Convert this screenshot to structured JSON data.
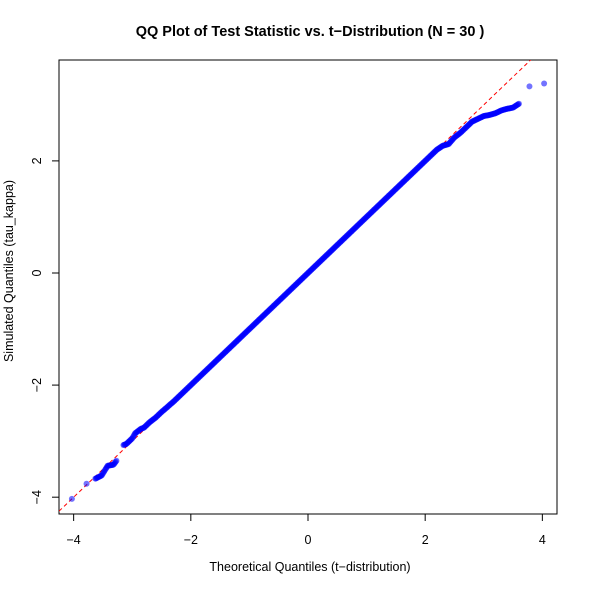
{
  "chart_data": {
    "type": "scatter",
    "title": "QQ Plot of Test Statistic vs. t−Distribution (N = 30 )",
    "xlabel": "Theoretical Quantiles (t−distribution)",
    "ylabel": "Simulated Quantiles (tau_kappa)",
    "xlim": [
      -4.25,
      4.25
    ],
    "ylim": [
      -4.3,
      3.8
    ],
    "x_ticks": [
      -4,
      -2,
      0,
      2,
      4
    ],
    "x_tick_labels": [
      "−4",
      "−2",
      "0",
      "2",
      "4"
    ],
    "y_ticks": [
      -4,
      -2,
      0,
      2
    ],
    "y_tick_labels": [
      "−4",
      "−2",
      "0",
      "2"
    ],
    "grid": false,
    "point_color": "#0000ff",
    "point_opacity": 0.55,
    "reference_line": {
      "intercept": 0,
      "slope": 1,
      "style": "dashed",
      "color": "#ff0000"
    },
    "series": [
      {
        "x": [
          -4.03,
          -3.78,
          -3.63,
          -3.52,
          -3.42,
          -3.37,
          -3.32,
          -3.27,
          -3.15,
          -3.1,
          -3.05,
          -3.0,
          -2.95,
          -2.9,
          -2.85,
          -2.8,
          -2.7,
          -2.6,
          -2.5,
          -2.4,
          -2.3,
          -2.2,
          -2.1,
          -2.0,
          -1.9,
          -1.8,
          -1.7,
          -1.6,
          -1.5,
          -1.4,
          -1.3,
          -1.2,
          -1.1,
          -1.0,
          -0.9,
          -0.8,
          -0.7,
          -0.6,
          -0.5,
          -0.4,
          -0.3,
          -0.2,
          -0.1,
          0.0,
          0.1,
          0.2,
          0.3,
          0.4,
          0.5,
          0.6,
          0.7,
          0.8,
          0.9,
          1.0,
          1.1,
          1.2,
          1.3,
          1.4,
          1.5,
          1.6,
          1.7,
          1.8,
          1.9,
          2.0,
          2.1,
          2.2,
          2.3,
          2.4,
          2.5,
          2.6,
          2.7,
          2.8,
          2.9,
          3.0,
          3.1,
          3.2,
          3.3,
          3.4,
          3.5,
          3.6,
          3.78,
          4.03
        ],
        "y": [
          -4.03,
          -3.76,
          -3.67,
          -3.61,
          -3.44,
          -3.43,
          -3.42,
          -3.35,
          -3.07,
          -3.05,
          -3.0,
          -2.95,
          -2.86,
          -2.82,
          -2.78,
          -2.76,
          -2.66,
          -2.58,
          -2.48,
          -2.39,
          -2.3,
          -2.2,
          -2.1,
          -2.0,
          -1.9,
          -1.8,
          -1.7,
          -1.6,
          -1.5,
          -1.4,
          -1.3,
          -1.2,
          -1.1,
          -1.0,
          -0.9,
          -0.8,
          -0.7,
          -0.6,
          -0.5,
          -0.4,
          -0.3,
          -0.2,
          -0.1,
          0.0,
          0.1,
          0.2,
          0.3,
          0.4,
          0.5,
          0.6,
          0.7,
          0.8,
          0.9,
          1.0,
          1.1,
          1.2,
          1.3,
          1.4,
          1.5,
          1.6,
          1.7,
          1.8,
          1.9,
          2.0,
          2.1,
          2.2,
          2.27,
          2.3,
          2.42,
          2.5,
          2.6,
          2.7,
          2.75,
          2.8,
          2.82,
          2.85,
          2.9,
          2.93,
          2.95,
          3.02,
          3.33,
          3.38
        ]
      }
    ]
  }
}
